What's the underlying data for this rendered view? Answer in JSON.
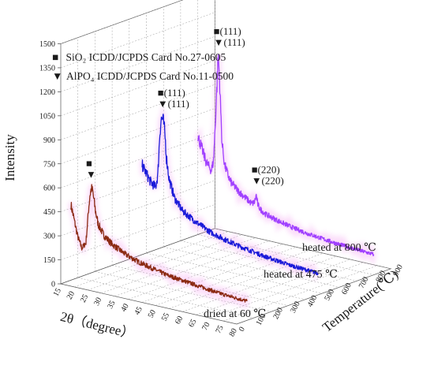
{
  "chart_data": {
    "type": "line",
    "title": "",
    "xlabel": "2θ（degree）",
    "ylabel": "Intensity",
    "zlabel": "Temperature(℃)",
    "x_ticks": [
      "15",
      "20",
      "25",
      "30",
      "35",
      "40",
      "45",
      "50",
      "55",
      "60",
      "65",
      "70",
      "75",
      "80"
    ],
    "y_ticks": [
      "0",
      "150",
      "300",
      "450",
      "600",
      "750",
      "900",
      "1050",
      "1200",
      "1350",
      "1500"
    ],
    "z_ticks": [
      "0",
      "100",
      "200",
      "300",
      "400",
      "500",
      "600",
      "700",
      "800",
      "900"
    ],
    "xlim": [
      15,
      80
    ],
    "ylim": [
      0,
      1500
    ],
    "zlim": [
      0,
      900
    ],
    "grid": true,
    "legend": [
      {
        "symbol": "■",
        "text": "SiO₂ ICDD/JCPDS Card No.27-0605",
        "color": "#000000"
      },
      {
        "symbol": "▼",
        "text": "AlPO₄ ICDD/JCPDS Card No.11-0500",
        "color": "#000000"
      }
    ],
    "series": [
      {
        "name": "dried at 60 ℃",
        "z": 60,
        "color": "#8b2a12",
        "x": [
          15,
          17.5,
          19,
          20.5,
          21.5,
          22,
          22.5,
          23,
          23.5,
          24,
          25,
          27,
          30,
          35,
          40,
          45,
          50,
          55,
          60,
          65,
          70,
          75,
          80
        ],
        "y": [
          470,
          280,
          215,
          255,
          470,
          560,
          600,
          585,
          530,
          470,
          390,
          330,
          285,
          240,
          210,
          190,
          170,
          160,
          150,
          140,
          130,
          125,
          120
        ]
      },
      {
        "name": "heated at 475 ℃",
        "z": 475,
        "color": "#1a1ad9",
        "x": [
          15,
          18,
          20,
          20.8,
          21.5,
          22,
          22.5,
          23,
          23.5,
          24,
          25,
          27,
          30,
          35,
          40,
          45,
          50,
          55,
          60,
          65,
          70,
          75,
          80
        ],
        "y": [
          560,
          470,
          440,
          520,
          770,
          870,
          880,
          850,
          770,
          640,
          510,
          400,
          330,
          280,
          240,
          215,
          195,
          180,
          165,
          155,
          145,
          140,
          135
        ]
      },
      {
        "name": "heated at 800 ℃",
        "z": 800,
        "color": "#a040ff",
        "x": [
          15,
          18,
          20,
          20.8,
          21.5,
          22,
          22.3,
          22.6,
          23,
          23.5,
          24,
          25,
          27,
          30,
          35,
          36,
          36.6,
          37.2,
          38,
          40,
          45,
          50,
          55,
          60,
          65,
          70,
          75,
          80
        ],
        "y": [
          620,
          470,
          420,
          480,
          720,
          920,
          1050,
          1140,
          1030,
          800,
          600,
          470,
          380,
          330,
          270,
          285,
          330,
          275,
          250,
          225,
          200,
          180,
          165,
          155,
          145,
          138,
          132,
          128
        ]
      }
    ],
    "annotations": [
      {
        "series": 0,
        "x": 22.3,
        "lines": [
          "■",
          "▼"
        ]
      },
      {
        "series": 1,
        "x": 22.5,
        "lines": [
          "■(111)",
          "▼(111)"
        ]
      },
      {
        "series": 2,
        "x": 22.6,
        "lines": [
          "■(111)",
          "▼(111)"
        ]
      },
      {
        "series": 2,
        "x": 36.6,
        "lines": [
          "■(220)",
          "▼(220)"
        ]
      }
    ]
  }
}
